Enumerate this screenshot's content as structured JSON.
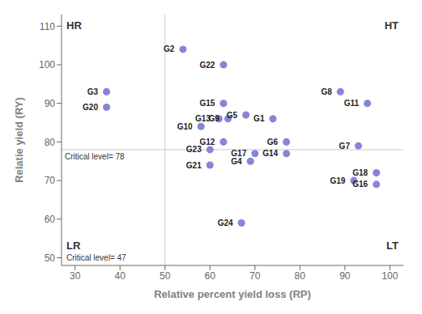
{
  "chart_data": {
    "type": "scatter",
    "x_label": "Relative percent yield loss (RP)",
    "y_label": "Relatie yield (RY)",
    "x": [
      74,
      54,
      37,
      69,
      68,
      77,
      93,
      89,
      64,
      58,
      95,
      63,
      62,
      77,
      63,
      97,
      70,
      97,
      92,
      37,
      60,
      63,
      60,
      67
    ],
    "values": [
      86,
      104,
      93,
      75,
      87,
      80,
      79,
      93,
      86,
      84,
      90,
      80,
      86,
      77,
      90,
      69,
      77,
      72,
      70,
      89,
      74,
      100,
      78,
      59
    ],
    "labels": [
      "G1",
      "G2",
      "G3",
      "G4",
      "G5",
      "G6",
      "G7",
      "G8",
      "G9",
      "G10",
      "G11",
      "G12",
      "G13",
      "G14",
      "G15",
      "G16",
      "G17",
      "G18",
      "G19",
      "G20",
      "G21",
      "G22",
      "G23",
      "G24"
    ],
    "data_labels": true,
    "color": "#8884d8",
    "xlim": [
      27,
      103
    ],
    "ylim": [
      48,
      113
    ],
    "xticks": [
      30,
      40,
      50,
      60,
      70,
      80,
      90,
      100
    ],
    "yticks": [
      50,
      60,
      70,
      80,
      90,
      100,
      110
    ],
    "grid": false,
    "reference_lines": [
      {
        "axis": "y",
        "value": 78,
        "label": "Critical level= 78"
      },
      {
        "axis": "x",
        "value": 50
      }
    ],
    "quadrant_labels": [
      "HR",
      "HT",
      "LR",
      "LT"
    ],
    "annotations": [
      "Critical level= 47"
    ]
  }
}
